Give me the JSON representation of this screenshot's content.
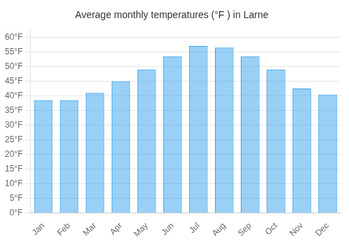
{
  "chart_data": {
    "type": "bar",
    "title": "Average monthly temperatures (°F ) in Larne",
    "categories": [
      "Jan",
      "Feb",
      "Mar",
      "Apr",
      "May",
      "Jun",
      "Jul",
      "Aug",
      "Sep",
      "Oct",
      "Nov",
      "Dec"
    ],
    "values": [
      38.5,
      38.5,
      41,
      45,
      49,
      53.5,
      57,
      56.5,
      53.5,
      49,
      42.5,
      40.5
    ],
    "ylim": [
      0,
      63
    ],
    "yticks": [
      {
        "value": 0,
        "label": "0°F"
      },
      {
        "value": 5,
        "label": "5°F"
      },
      {
        "value": 10,
        "label": "10°F"
      },
      {
        "value": 15,
        "label": "15°F"
      },
      {
        "value": 20,
        "label": "20°F"
      },
      {
        "value": 25,
        "label": "25°F"
      },
      {
        "value": 30,
        "label": "30°F"
      },
      {
        "value": 35,
        "label": "35°F"
      },
      {
        "value": 40,
        "label": "40°F"
      },
      {
        "value": 45,
        "label": "45°F"
      },
      {
        "value": 50,
        "label": "50°F"
      },
      {
        "value": 55,
        "label": "55°F"
      },
      {
        "value": 60,
        "label": "60°F"
      }
    ],
    "grid": true
  }
}
